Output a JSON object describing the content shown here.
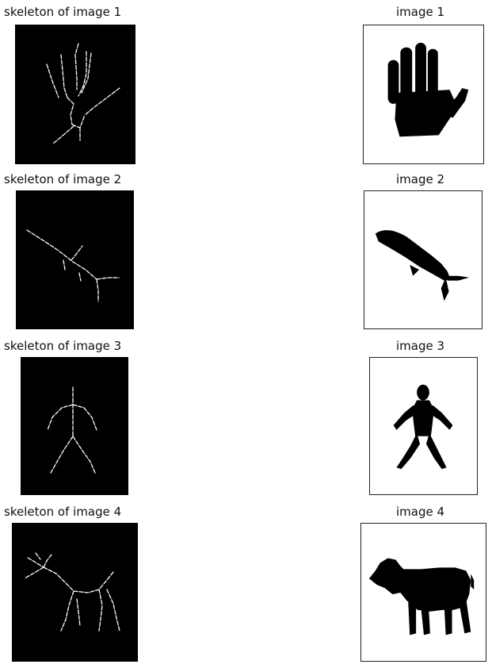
{
  "rows": [
    {
      "skeleton_title": "skeleton of image 1",
      "image_title": "image 1",
      "subject": "hand"
    },
    {
      "skeleton_title": "skeleton of image 2",
      "image_title": "image 2",
      "subject": "shark"
    },
    {
      "skeleton_title": "skeleton of image 3",
      "image_title": "image 3",
      "subject": "human figure"
    },
    {
      "skeleton_title": "skeleton of image 4",
      "image_title": "image 4",
      "subject": "cow"
    }
  ]
}
